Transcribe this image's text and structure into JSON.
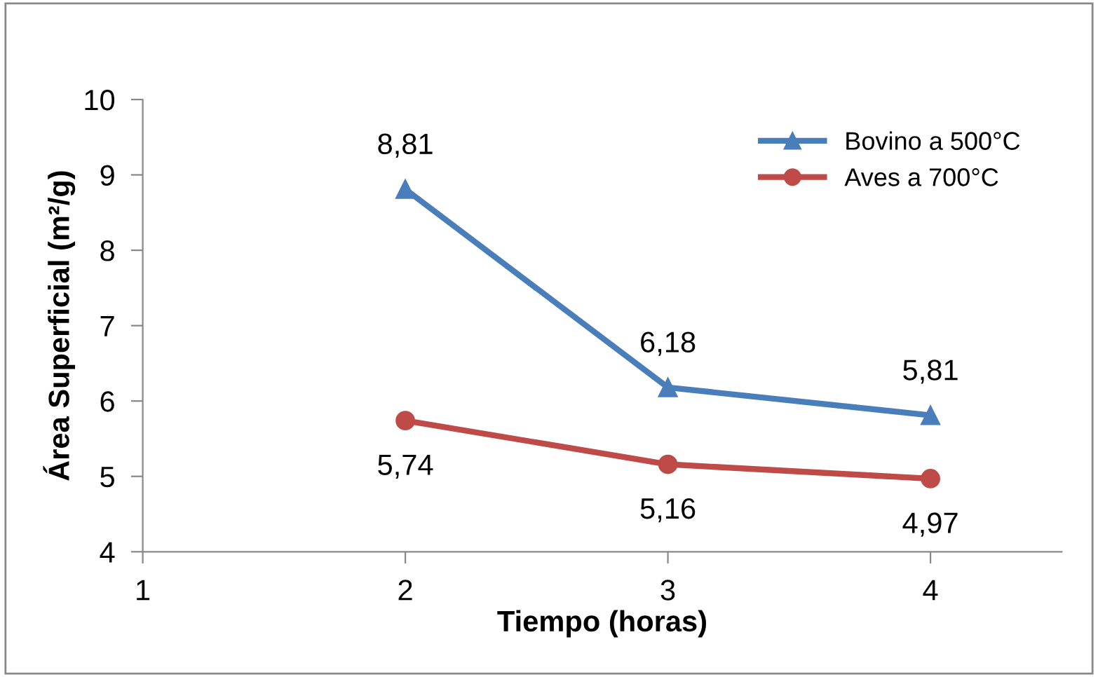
{
  "chart_data": {
    "type": "line",
    "xlabel": "Tiempo (horas)",
    "ylabel": "Área Superficial (m²/g)",
    "x": [
      2,
      3,
      4
    ],
    "series": [
      {
        "name": "Bovino a 500°C",
        "color": "#4a7ebb",
        "values": [
          8.81,
          6.18,
          5.81
        ],
        "marker": "triangle",
        "value_labels": [
          "8,81",
          "6,18",
          "5,81"
        ]
      },
      {
        "name": "Aves a 700°C",
        "color": "#be4b48",
        "values": [
          5.74,
          5.16,
          4.97
        ],
        "marker": "circle",
        "value_labels": [
          "5,74",
          "5,16",
          "4,97"
        ]
      }
    ],
    "xlim": [
      1,
      4.5
    ],
    "xticks": [
      1,
      2,
      3,
      4
    ],
    "ylim": [
      4,
      10
    ],
    "yticks": [
      4,
      5,
      6,
      7,
      8,
      9,
      10
    ],
    "grid": false,
    "legend": "top right",
    "line_style": "solid"
  }
}
